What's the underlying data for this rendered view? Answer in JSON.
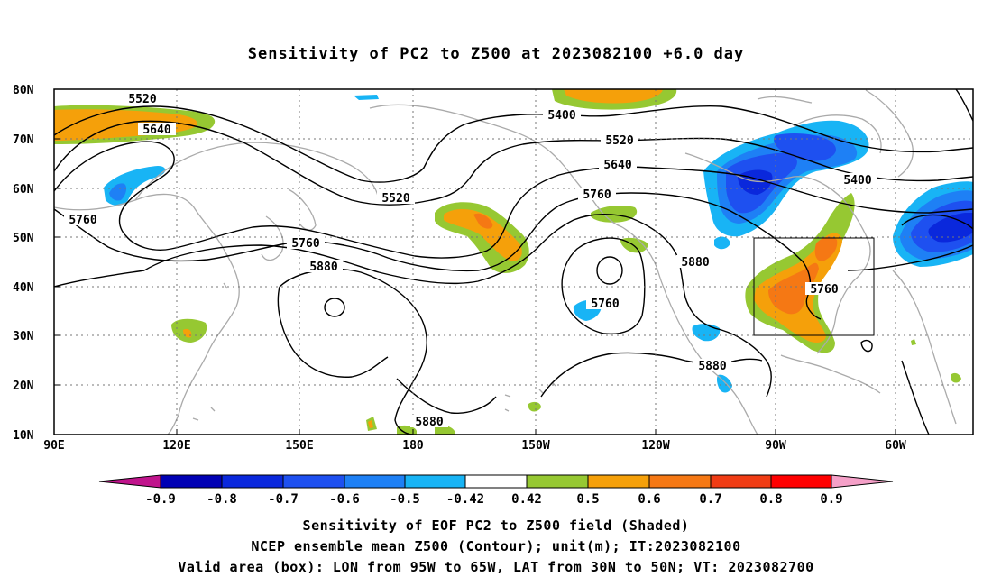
{
  "title": "Sensitivity of PC2 to Z500 at 2023082100 +6.0 day",
  "map": {
    "lat_labels": [
      "80N",
      "70N",
      "60N",
      "50N",
      "40N",
      "30N",
      "20N",
      "10N"
    ],
    "lon_labels": [
      "90E",
      "120E",
      "150E",
      "180",
      "150W",
      "120W",
      "90W",
      "60W"
    ],
    "contour_labels": [
      "5520",
      "5640",
      "5400",
      "5520",
      "5640",
      "5760",
      "5400",
      "5520",
      "5760",
      "5760",
      "5880",
      "5880",
      "5760",
      "5760",
      "5880",
      "5880"
    ],
    "box": {
      "lon_from": "95W",
      "lon_to": "65W",
      "lat_from": "30N",
      "lat_to": "50N"
    }
  },
  "colorbar": {
    "tick_labels": [
      "-0.9",
      "-0.8",
      "-0.7",
      "-0.6",
      "-0.5",
      "-0.42",
      "0.42",
      "0.5",
      "0.6",
      "0.7",
      "0.8",
      "0.9"
    ],
    "colors": [
      "#c0148c",
      "#0000b4",
      "#0a28dc",
      "#1e50f0",
      "#1e80f5",
      "#18b4f5",
      "#ffffff",
      "#96c832",
      "#f5a00a",
      "#f57814",
      "#f03c14",
      "#ff0000",
      "#f5a0c8"
    ]
  },
  "captions": [
    "Sensitivity of EOF PC2 to Z500 field (Shaded)",
    "NCEP ensemble mean Z500 (Contour); unit(m); IT:2023082100",
    "Valid area (box): LON from 95W to 65W, LAT from 30N to 50N; VT: 2023082700"
  ]
}
